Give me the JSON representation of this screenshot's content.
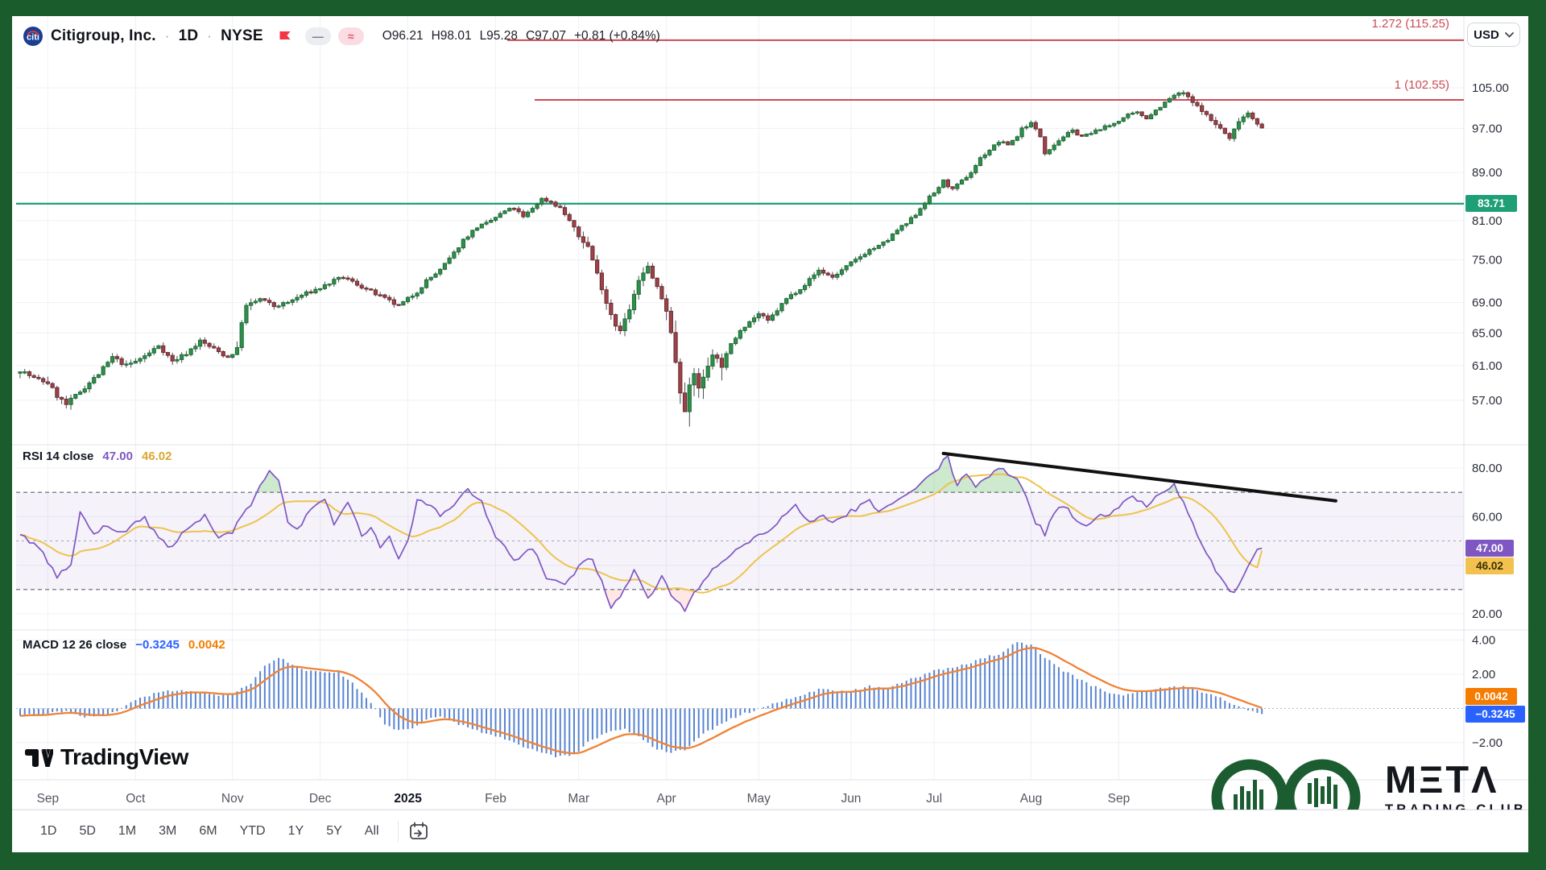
{
  "header": {
    "symbol": "Citigroup, Inc.",
    "separator": "·",
    "timeframe": "1D",
    "exchange": "NYSE",
    "ohlc": {
      "open": "O96.21",
      "high": "H98.01",
      "low": "L95.28",
      "close": "C97.07",
      "change": "+0.81 (+0.84%)"
    }
  },
  "currency": {
    "label": "USD"
  },
  "levels": {
    "fib_1272": {
      "label": "1.272 (115.25)",
      "price": 115.25
    },
    "fib_1": {
      "label": "1 (102.55)",
      "price": 102.55
    },
    "support": {
      "label": "83.71",
      "price": 83.71
    }
  },
  "price_scale": {
    "ticks": [
      105,
      97,
      89,
      81,
      75,
      69,
      65,
      61,
      57
    ],
    "current_badge": "83.71"
  },
  "rsi_panel": {
    "title": "RSI 14 close",
    "value": "47.00",
    "ma_value": "46.02",
    "ticks": [
      80,
      60,
      20
    ],
    "value_badge": "47.00",
    "ma_badge": "46.02"
  },
  "macd_panel": {
    "title": "MACD 12 26 close",
    "value": "−0.3245",
    "signal": "0.0042",
    "ticks": [
      4,
      2,
      -2
    ],
    "signal_badge": "0.0042",
    "value_badge": "−0.3245"
  },
  "toolbar": {
    "ranges": [
      "1D",
      "5D",
      "1M",
      "3M",
      "6M",
      "YTD",
      "1Y",
      "5Y",
      "All"
    ]
  },
  "branding": {
    "tradingview": "TradingView",
    "meta_title": "META",
    "meta_title_display": "MΞTΛ",
    "meta_subtitle": "TRADING CLUB"
  },
  "colors": {
    "up_body": "#2f8f4b",
    "up_border": "#1d6b35",
    "down_body": "#9c4349",
    "down_border": "#6b2c31",
    "wick": "#4a4d55",
    "fib_line": "#cc4b56",
    "support_line": "#1f9f77",
    "rsi_line": "#7e57c2",
    "rsi_ma": "#edc44c",
    "macd_bar": "#3b6fc9",
    "macd_signal": "#ef8336",
    "grid": "#eef0f5"
  },
  "chart_data": {
    "type": "candlestick_with_rsi_macd",
    "title": "Citigroup, Inc. 1D NYSE",
    "x_axis": "Sep 2024 – Sep 2025 (daily)",
    "price_axis_range": [
      54,
      116
    ],
    "months": [
      {
        "text": "Sep",
        "i": 6
      },
      {
        "text": "Oct",
        "i": 25
      },
      {
        "text": "Nov",
        "i": 46
      },
      {
        "text": "Dec",
        "i": 65
      },
      {
        "text": "2025",
        "i": 84
      },
      {
        "text": "Feb",
        "i": 103
      },
      {
        "text": "Mar",
        "i": 121
      },
      {
        "text": "Apr",
        "i": 140
      },
      {
        "text": "May",
        "i": 160
      },
      {
        "text": "Jun",
        "i": 180
      },
      {
        "text": "Jul",
        "i": 198
      },
      {
        "text": "Aug",
        "i": 219
      },
      {
        "text": "Sep",
        "i": 238
      }
    ],
    "n_candles": 270,
    "close_anchors": [
      [
        0,
        60.5
      ],
      [
        3,
        59.5
      ],
      [
        6,
        59
      ],
      [
        8,
        57.5
      ],
      [
        10,
        56.5
      ],
      [
        12,
        57.5
      ],
      [
        14,
        58.5
      ],
      [
        17,
        60
      ],
      [
        20,
        62
      ],
      [
        23,
        61
      ],
      [
        25,
        61.5
      ],
      [
        28,
        62.5
      ],
      [
        30,
        63.5
      ],
      [
        33,
        61.5
      ],
      [
        36,
        62.5
      ],
      [
        39,
        64
      ],
      [
        42,
        63
      ],
      [
        45,
        62
      ],
      [
        47,
        63
      ],
      [
        48,
        66.5
      ],
      [
        49,
        68.5
      ],
      [
        52,
        69.5
      ],
      [
        55,
        68.5
      ],
      [
        58,
        69
      ],
      [
        61,
        70
      ],
      [
        65,
        71
      ],
      [
        68,
        72
      ],
      [
        70,
        72.5
      ],
      [
        73,
        71.5
      ],
      [
        76,
        70.5
      ],
      [
        79,
        69.5
      ],
      [
        82,
        68.5
      ],
      [
        84,
        69.5
      ],
      [
        86,
        70.5
      ],
      [
        88,
        72
      ],
      [
        91,
        73.5
      ],
      [
        94,
        76
      ],
      [
        96,
        78
      ],
      [
        99,
        80
      ],
      [
        101,
        80.5
      ],
      [
        103,
        81.5
      ],
      [
        105,
        82.5
      ],
      [
        107,
        83
      ],
      [
        109,
        81.5
      ],
      [
        111,
        83
      ],
      [
        113,
        84.5
      ],
      [
        115,
        84
      ],
      [
        117,
        83
      ],
      [
        119,
        81
      ],
      [
        121,
        78.5
      ],
      [
        123,
        77
      ],
      [
        125,
        73
      ],
      [
        127,
        69
      ],
      [
        129,
        66
      ],
      [
        130,
        65.5
      ],
      [
        132,
        68
      ],
      [
        134,
        72
      ],
      [
        136,
        74
      ],
      [
        138,
        71
      ],
      [
        140,
        68
      ],
      [
        141,
        65
      ],
      [
        142,
        61.5
      ],
      [
        143,
        58
      ],
      [
        144,
        56
      ],
      [
        145,
        58.5
      ],
      [
        146,
        60
      ],
      [
        147,
        58.5
      ],
      [
        148,
        59.5
      ],
      [
        150,
        62.5
      ],
      [
        152,
        61
      ],
      [
        154,
        63.5
      ],
      [
        156,
        65.5
      ],
      [
        158,
        66.5
      ],
      [
        160,
        67.5
      ],
      [
        162,
        66.5
      ],
      [
        164,
        68
      ],
      [
        166,
        69.5
      ],
      [
        168,
        70.5
      ],
      [
        170,
        71.5
      ],
      [
        173,
        73.5
      ],
      [
        176,
        72.5
      ],
      [
        178,
        73.5
      ],
      [
        180,
        74.5
      ],
      [
        182,
        75.5
      ],
      [
        184,
        76.5
      ],
      [
        186,
        77
      ],
      [
        188,
        78
      ],
      [
        190,
        79.5
      ],
      [
        192,
        80.5
      ],
      [
        194,
        82
      ],
      [
        196,
        84
      ],
      [
        198,
        85.5
      ],
      [
        200,
        87.5
      ],
      [
        202,
        86
      ],
      [
        204,
        87.5
      ],
      [
        206,
        89
      ],
      [
        208,
        91.5
      ],
      [
        210,
        93
      ],
      [
        212,
        94.5
      ],
      [
        214,
        94
      ],
      [
        216,
        95.5
      ],
      [
        217,
        97
      ],
      [
        219,
        98
      ],
      [
        221,
        95.5
      ],
      [
        222,
        92.5
      ],
      [
        224,
        94
      ],
      [
        226,
        95.5
      ],
      [
        228,
        96.5
      ],
      [
        230,
        95.5
      ],
      [
        232,
        96
      ],
      [
        234,
        97
      ],
      [
        236,
        97.5
      ],
      [
        238,
        98.5
      ],
      [
        240,
        99.5
      ],
      [
        242,
        100
      ],
      [
        244,
        99
      ],
      [
        246,
        100.5
      ],
      [
        248,
        102
      ],
      [
        250,
        103.5
      ],
      [
        252,
        104
      ],
      [
        254,
        102
      ],
      [
        256,
        100.5
      ],
      [
        258,
        98.5
      ],
      [
        260,
        97
      ],
      [
        262,
        95
      ],
      [
        264,
        98.5
      ],
      [
        266,
        100
      ],
      [
        267,
        99
      ],
      [
        268,
        98
      ],
      [
        269,
        97.07
      ]
    ],
    "rsi": {
      "period": 14,
      "last": 47.0,
      "ma_last": 46.02,
      "band": [
        70,
        30
      ],
      "midline": 50,
      "anchors": [
        [
          0,
          52
        ],
        [
          4,
          48
        ],
        [
          8,
          35
        ],
        [
          11,
          40
        ],
        [
          13,
          62
        ],
        [
          16,
          52
        ],
        [
          18,
          57
        ],
        [
          22,
          54
        ],
        [
          27,
          59
        ],
        [
          32,
          47
        ],
        [
          36,
          54
        ],
        [
          40,
          60
        ],
        [
          43,
          51
        ],
        [
          46,
          54
        ],
        [
          50,
          65
        ],
        [
          54,
          79
        ],
        [
          56,
          75
        ],
        [
          58,
          58
        ],
        [
          60,
          54
        ],
        [
          63,
          64
        ],
        [
          66,
          67
        ],
        [
          68,
          56
        ],
        [
          71,
          66
        ],
        [
          74,
          52
        ],
        [
          76,
          56
        ],
        [
          78,
          47
        ],
        [
          80,
          51
        ],
        [
          82,
          43
        ],
        [
          84,
          50
        ],
        [
          86,
          67
        ],
        [
          89,
          65
        ],
        [
          91,
          61
        ],
        [
          93,
          63
        ],
        [
          95,
          68
        ],
        [
          97,
          71
        ],
        [
          100,
          66
        ],
        [
          103,
          52
        ],
        [
          107,
          42
        ],
        [
          111,
          47
        ],
        [
          114,
          35
        ],
        [
          118,
          31
        ],
        [
          121,
          40
        ],
        [
          124,
          43
        ],
        [
          128,
          23
        ],
        [
          131,
          30
        ],
        [
          133,
          38
        ],
        [
          136,
          26
        ],
        [
          139,
          35
        ],
        [
          141,
          28
        ],
        [
          144,
          22
        ],
        [
          146,
          28
        ],
        [
          149,
          36
        ],
        [
          152,
          42
        ],
        [
          155,
          46
        ],
        [
          158,
          50
        ],
        [
          161,
          53
        ],
        [
          164,
          57
        ],
        [
          166,
          62
        ],
        [
          168,
          64
        ],
        [
          171,
          57
        ],
        [
          174,
          60
        ],
        [
          177,
          58
        ],
        [
          180,
          62
        ],
        [
          184,
          66
        ],
        [
          186,
          63
        ],
        [
          188,
          64
        ],
        [
          191,
          68
        ],
        [
          194,
          71
        ],
        [
          197,
          77
        ],
        [
          199,
          80
        ],
        [
          201,
          85
        ],
        [
          203,
          72
        ],
        [
          205,
          78
        ],
        [
          207,
          73
        ],
        [
          210,
          77
        ],
        [
          212,
          80
        ],
        [
          215,
          76
        ],
        [
          217,
          73
        ],
        [
          219,
          63
        ],
        [
          220,
          58
        ],
        [
          222,
          53
        ],
        [
          224,
          62
        ],
        [
          226,
          65
        ],
        [
          228,
          60
        ],
        [
          231,
          56
        ],
        [
          234,
          62
        ],
        [
          236,
          60
        ],
        [
          238,
          64
        ],
        [
          241,
          68
        ],
        [
          244,
          65
        ],
        [
          247,
          70
        ],
        [
          250,
          73
        ],
        [
          253,
          62
        ],
        [
          256,
          48
        ],
        [
          259,
          38
        ],
        [
          262,
          30
        ],
        [
          263,
          28
        ],
        [
          265,
          35
        ],
        [
          267,
          44
        ],
        [
          269,
          47
        ]
      ],
      "trendline": {
        "i1": 200,
        "v1": 86,
        "i2": 285,
        "v2": 66.5
      }
    },
    "macd": {
      "fast": 12,
      "slow": 26,
      "signal_period": 9,
      "last": -0.3245,
      "signal_last": 0.0042,
      "anchors": [
        [
          0,
          -0.4
        ],
        [
          6,
          -0.3
        ],
        [
          10,
          -0.15
        ],
        [
          14,
          -0.5
        ],
        [
          18,
          -0.45
        ],
        [
          22,
          0
        ],
        [
          26,
          0.6
        ],
        [
          31,
          1.0
        ],
        [
          35,
          1.1
        ],
        [
          39,
          0.9
        ],
        [
          43,
          0.8
        ],
        [
          46,
          0.9
        ],
        [
          50,
          1.5
        ],
        [
          53,
          2.5
        ],
        [
          56,
          3.0
        ],
        [
          58,
          2.7
        ],
        [
          62,
          2.2
        ],
        [
          65,
          2.1
        ],
        [
          69,
          2.1
        ],
        [
          72,
          1.5
        ],
        [
          75,
          0.6
        ],
        [
          77,
          0
        ],
        [
          79,
          -0.9
        ],
        [
          82,
          -1.3
        ],
        [
          85,
          -1.1
        ],
        [
          88,
          -0.6
        ],
        [
          92,
          -0.5
        ],
        [
          95,
          -0.9
        ],
        [
          99,
          -1.3
        ],
        [
          103,
          -1.6
        ],
        [
          107,
          -2.0
        ],
        [
          112,
          -2.5
        ],
        [
          116,
          -2.8
        ],
        [
          120,
          -2.7
        ],
        [
          123,
          -2.0
        ],
        [
          127,
          -1.4
        ],
        [
          131,
          -1.2
        ],
        [
          134,
          -1.6
        ],
        [
          137,
          -2.2
        ],
        [
          140,
          -2.6
        ],
        [
          144,
          -2.4
        ],
        [
          147,
          -1.7
        ],
        [
          151,
          -1.0
        ],
        [
          154,
          -0.6
        ],
        [
          157,
          -0.3
        ],
        [
          160,
          0
        ],
        [
          167,
          0.6
        ],
        [
          173,
          1.1
        ],
        [
          180,
          1.0
        ],
        [
          184,
          1.3
        ],
        [
          188,
          1.2
        ],
        [
          192,
          1.6
        ],
        [
          198,
          2.2
        ],
        [
          203,
          2.4
        ],
        [
          207,
          2.8
        ],
        [
          212,
          3.2
        ],
        [
          216,
          3.9
        ],
        [
          219,
          3.7
        ],
        [
          222,
          3.0
        ],
        [
          226,
          2.2
        ],
        [
          231,
          1.5
        ],
        [
          235,
          1.0
        ],
        [
          239,
          0.8
        ],
        [
          243,
          1.0
        ],
        [
          248,
          1.2
        ],
        [
          252,
          1.3
        ],
        [
          256,
          1.0
        ],
        [
          261,
          0.5
        ],
        [
          264,
          0.1
        ],
        [
          267,
          -0.2
        ],
        [
          269,
          -0.32
        ]
      ]
    }
  }
}
